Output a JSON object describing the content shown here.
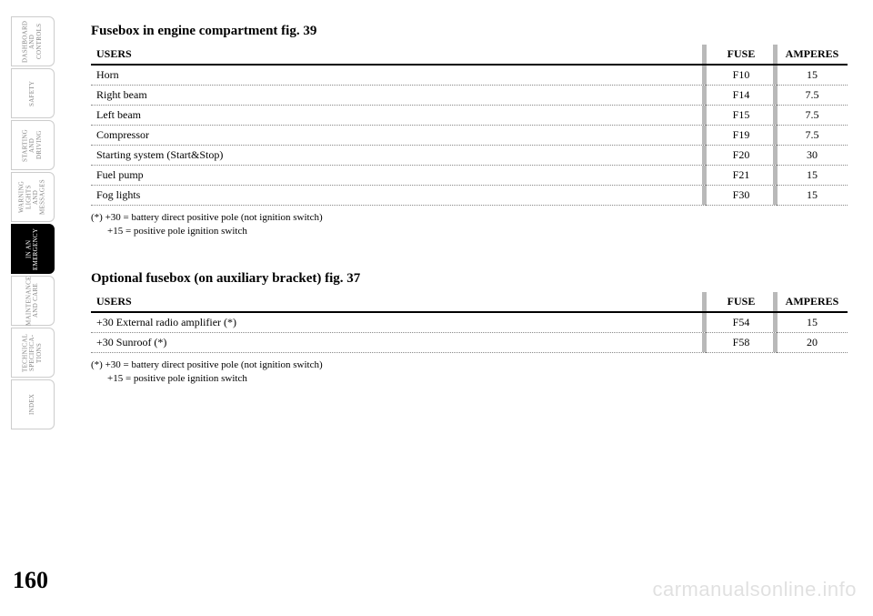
{
  "page_number": "160",
  "watermark": "carmanualsonline.info",
  "tabs": [
    {
      "label": "DASHBOARD AND CONTROLS",
      "active": false
    },
    {
      "label": "SAFETY",
      "active": false
    },
    {
      "label": "STARTING AND DRIVING",
      "active": false
    },
    {
      "label": "WARNING LIGHTS AND MESSAGES",
      "active": false
    },
    {
      "label": "IN AN EMERGENCY",
      "active": true
    },
    {
      "label": "MAINTENANCE AND CARE",
      "active": false
    },
    {
      "label": "TECHNICAL SPECIFICA-TIONS",
      "active": false
    },
    {
      "label": "INDEX",
      "active": false
    }
  ],
  "table1": {
    "title": "Fusebox in engine compartment fig. 39",
    "headers": {
      "users": "USERS",
      "fuse": "FUSE",
      "amperes": "AMPERES"
    },
    "rows": [
      {
        "users": "Horn",
        "fuse": "F10",
        "amp": "15"
      },
      {
        "users": "Right beam",
        "fuse": "F14",
        "amp": "7.5"
      },
      {
        "users": "Left beam",
        "fuse": "F15",
        "amp": "7.5"
      },
      {
        "users": "Compressor",
        "fuse": "F19",
        "amp": "7.5"
      },
      {
        "users": "Starting system (Start&Stop)",
        "fuse": "F20",
        "amp": "30"
      },
      {
        "users": "Fuel pump",
        "fuse": "F21",
        "amp": "15"
      },
      {
        "users": "Fog lights",
        "fuse": "F30",
        "amp": "15"
      }
    ],
    "note1": "(*) +30 = battery direct positive pole (not ignition switch)",
    "note2": "+15 = positive pole ignition switch"
  },
  "table2": {
    "title": "Optional fusebox (on auxiliary bracket) fig. 37",
    "headers": {
      "users": "USERS",
      "fuse": "FUSE",
      "amperes": "AMPERES"
    },
    "rows": [
      {
        "users": "+30 External radio amplifier (*)",
        "fuse": "F54",
        "amp": "15"
      },
      {
        "users": "+30 Sunroof (*)",
        "fuse": "F58",
        "amp": "20"
      }
    ],
    "note1": "(*) +30 = battery direct positive pole (not ignition switch)",
    "note2": "+15 = positive pole ignition switch"
  },
  "colors": {
    "separator": "#b9b9b9",
    "text": "#000000",
    "inactive_tab_text": "#888888"
  }
}
